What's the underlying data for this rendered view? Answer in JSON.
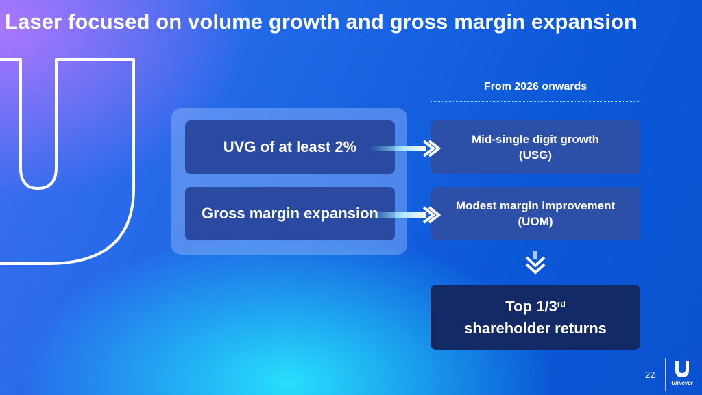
{
  "slide": {
    "title": "Laser focused on volume growth and gross margin expansion",
    "page_number": "22"
  },
  "left_boxes": [
    {
      "label": "UVG of at least 2%"
    },
    {
      "label": "Gross margin expansion"
    }
  ],
  "right_header": "From 2026 onwards",
  "right_boxes": [
    {
      "line1": "Mid-single digit growth",
      "line2": "(USG)"
    },
    {
      "line1": "Modest margin improvement",
      "line2": "(UOM)"
    }
  ],
  "final_box": {
    "line1_main": "Top 1/3",
    "line1_sup": "rd",
    "line2": "shareholder returns"
  },
  "logo": {
    "wordmark": "Unilever"
  },
  "colors": {
    "box_fill": "#2a4aa2",
    "final_fill": "#132a66",
    "arrow": "#ffffff"
  }
}
